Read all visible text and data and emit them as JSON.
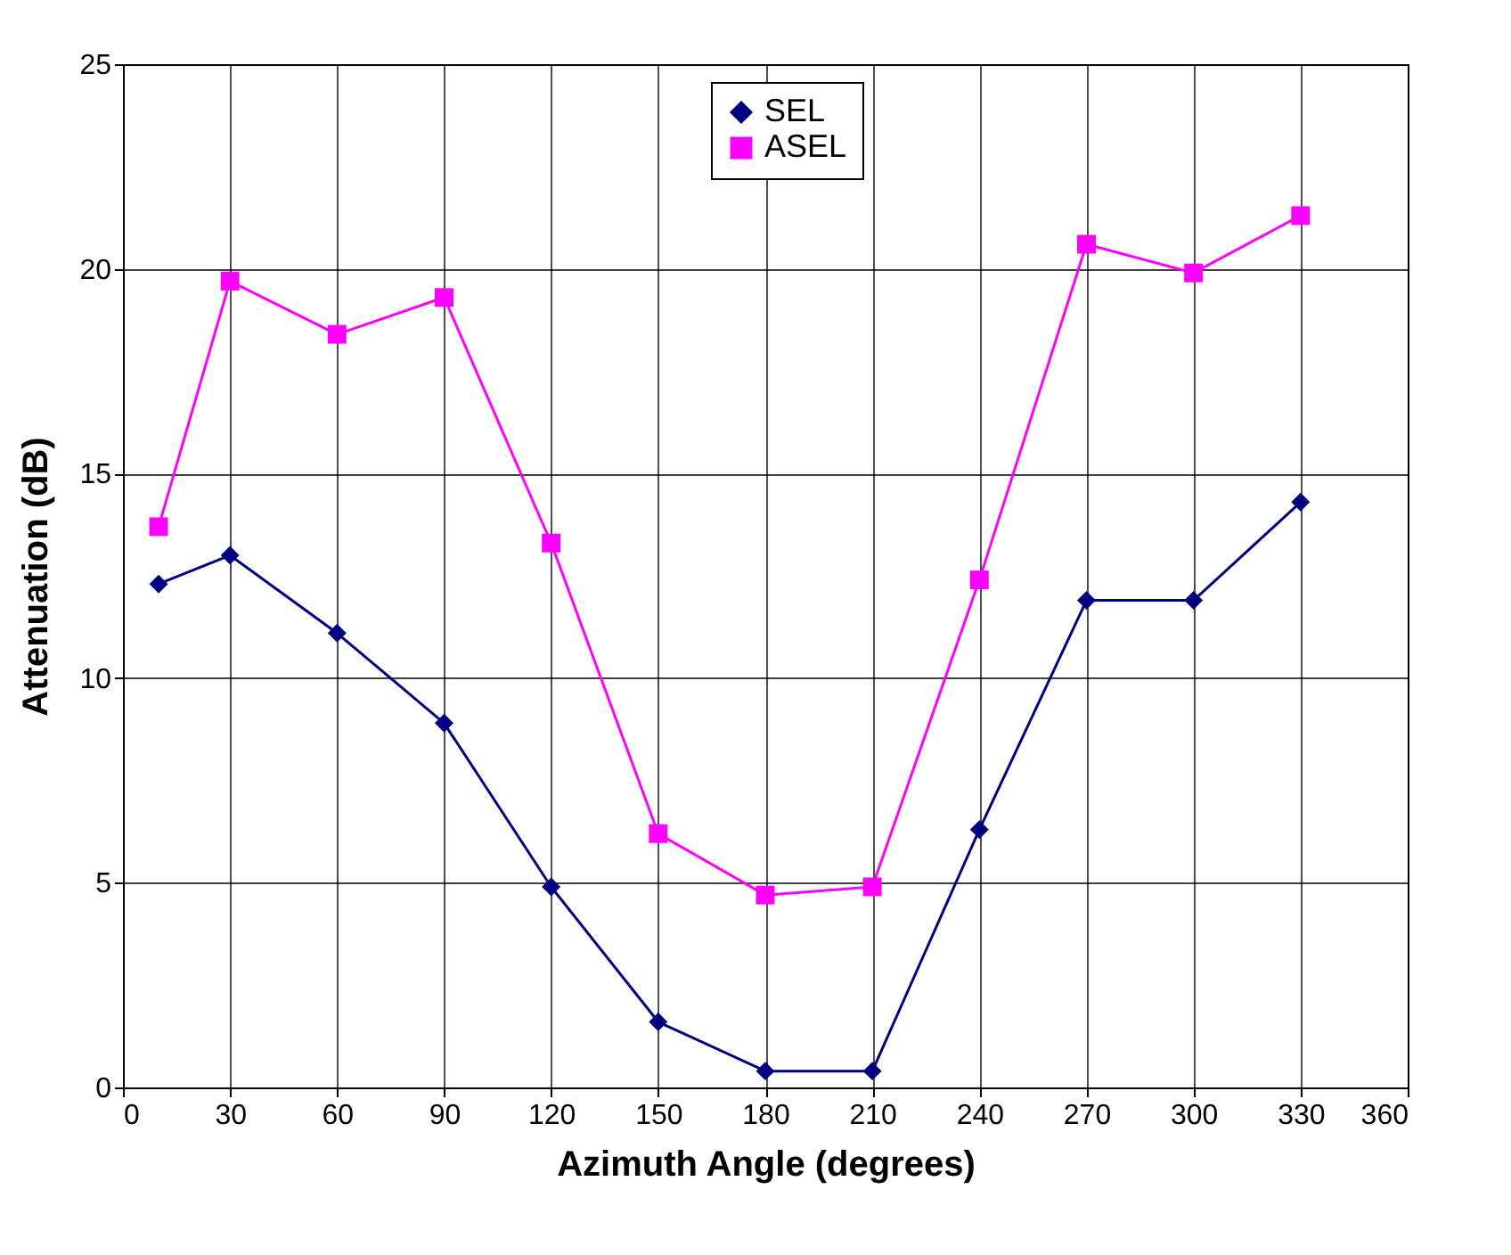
{
  "chart_data": {
    "type": "line",
    "xlabel": "Azimuth Angle (degrees)",
    "ylabel": "Attenuation (dB)",
    "x": [
      10,
      30,
      60,
      90,
      120,
      150,
      180,
      210,
      240,
      270,
      300,
      330
    ],
    "series": [
      {
        "name": "SEL",
        "color": "#000080",
        "marker": "diamond",
        "values": [
          12.3,
          13.0,
          11.1,
          8.9,
          4.9,
          1.6,
          0.4,
          0.4,
          6.3,
          11.9,
          11.9,
          14.3
        ]
      },
      {
        "name": "ASEL",
        "color": "#ff00ff",
        "marker": "square",
        "values": [
          13.7,
          19.7,
          18.4,
          19.3,
          13.3,
          6.2,
          4.7,
          4.9,
          12.4,
          20.6,
          19.9,
          21.3
        ]
      }
    ],
    "xlim": [
      0,
      360
    ],
    "xticks": [
      0,
      30,
      60,
      90,
      120,
      150,
      180,
      210,
      240,
      270,
      300,
      330,
      360
    ],
    "ylim": [
      0,
      25
    ],
    "yticks": [
      0,
      5,
      10,
      15,
      20,
      25
    ],
    "grid": true,
    "legend": "top",
    "line_style": "solid"
  }
}
